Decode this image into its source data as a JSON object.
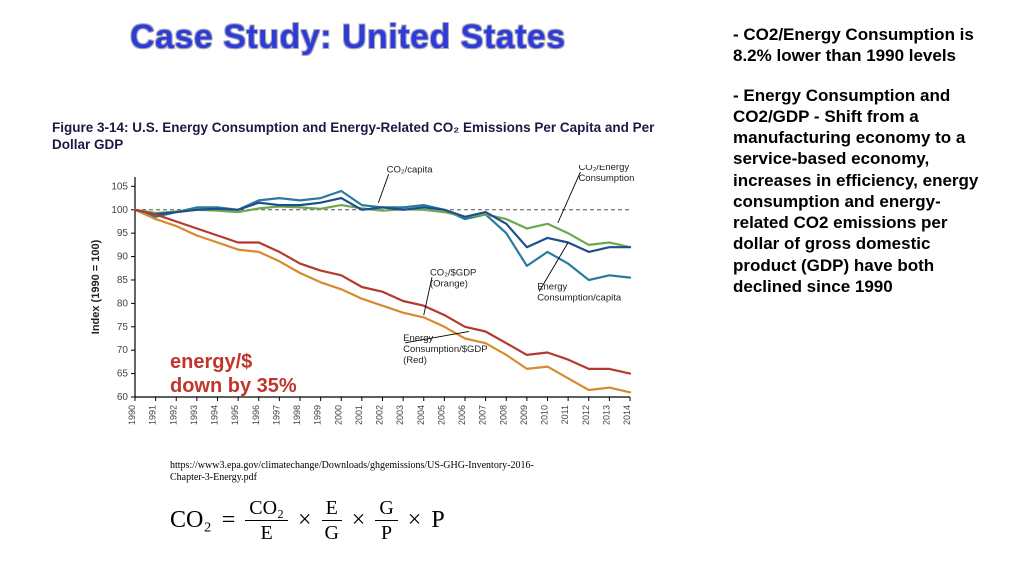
{
  "title": "Case Study: United States",
  "figure_caption": "Figure 3-14:  U.S. Energy Consumption and Energy-Related CO₂ Emissions Per Capita and Per Dollar GDP",
  "annotation_red_line1": "energy/$",
  "annotation_red_line2": "down by 35%",
  "source": "https://www3.epa.gov/climatechange/Downloads/ghgemissions/US-GHG-Inventory-2016-Chapter-3-Energy.pdf",
  "formula": {
    "lhs": "CO₂",
    "eq": "=",
    "t1n": "E",
    "t1d": "E",
    "times": "×",
    "t2n": "E",
    "t2d": "G",
    "t3n": "G",
    "t3d": "P",
    "tP": "P",
    "frac1_num": "CO₂",
    "frac1_den": "E",
    "frac2_num": "E",
    "frac2_den": "G",
    "frac3_num": "G",
    "frac3_den": "P"
  },
  "sidebar": {
    "p1": "- CO2/Energy Consumption is 8.2% lower than 1990 levels",
    "p2": "-  Energy Consumption and CO2/GDP - Shift from a manufacturing economy to a service-based economy, increases in efficiency, energy consumption and energy-related CO2 emissions per  dollar of gross domestic product (GDP) have both declined since 1990"
  },
  "chart": {
    "type": "line",
    "background_color": "#ffffff",
    "plot_border_color": "#000000",
    "grid": false,
    "reference_line": {
      "y": 100,
      "dash": "4,3",
      "color": "#555555",
      "width": 1
    },
    "x": {
      "label": null,
      "years": [
        1990,
        1991,
        1992,
        1993,
        1994,
        1995,
        1996,
        1997,
        1998,
        1999,
        2000,
        2001,
        2002,
        2003,
        2004,
        2005,
        2006,
        2007,
        2008,
        2009,
        2010,
        2011,
        2012,
        2013,
        2014
      ],
      "tick_rotation": -90,
      "tick_fontsize": 9,
      "tick_color": "#444444"
    },
    "y": {
      "label": "Index (1990 = 100)",
      "label_fontsize": 11,
      "label_color": "#222222",
      "lim": [
        60,
        107
      ],
      "ticks": [
        60,
        65,
        70,
        75,
        80,
        85,
        90,
        95,
        100,
        105
      ],
      "tick_fontsize": 10,
      "tick_color": "#444444"
    },
    "series": [
      {
        "name": "CO2/capita",
        "color": "#2a7a9e",
        "width": 2.2,
        "values": [
          100,
          98.5,
          99.5,
          100.5,
          100.5,
          100,
          102,
          102.5,
          102,
          102.5,
          104,
          101,
          100.5,
          100.5,
          101,
          100,
          98,
          99,
          95,
          88,
          91,
          88.5,
          85,
          86,
          85.5
        ]
      },
      {
        "name": "CO2/Energy Consumption",
        "color": "#6ea84f",
        "width": 2.2,
        "values": [
          100,
          99.3,
          99.6,
          100,
          99.8,
          99.5,
          100.3,
          100.7,
          100.5,
          100.2,
          101,
          100.3,
          99.8,
          100.1,
          100,
          99.5,
          98.5,
          99,
          98,
          96,
          97,
          95,
          92.5,
          93,
          92
        ]
      },
      {
        "name": "Energy Consumption/capita",
        "color": "#1f4e8c",
        "width": 2.2,
        "values": [
          100,
          99,
          99.5,
          100,
          100.2,
          100,
          101.5,
          101,
          101,
          101.5,
          102.5,
          100,
          100.5,
          100,
          100.5,
          100,
          98.5,
          99.5,
          97,
          92,
          94,
          93,
          91,
          92,
          92
        ]
      },
      {
        "name": "CO2/$GDP (Orange)",
        "color": "#d88a2e",
        "width": 2.2,
        "values": [
          100,
          98,
          96.5,
          94.5,
          93,
          91.5,
          91,
          89,
          86.5,
          84.5,
          83,
          81,
          79.5,
          78,
          77,
          75,
          72.5,
          71.5,
          69,
          66,
          66.5,
          64,
          61.5,
          62,
          61
        ]
      },
      {
        "name": "Energy Consumption/$GDP (Red)",
        "color": "#b23a2f",
        "width": 2.2,
        "values": [
          100,
          99,
          97.5,
          96,
          94.5,
          93,
          93,
          91,
          88.5,
          87,
          86,
          83.5,
          82.5,
          80.5,
          79.5,
          77.5,
          75,
          74,
          71.5,
          69,
          69.5,
          68,
          66,
          66,
          65
        ]
      }
    ],
    "callouts": [
      {
        "text": "CO₂/capita",
        "x_text": 12.2,
        "y_text": 108,
        "x_end": 11.8,
        "y_end": 101.5,
        "fontsize": 9.5
      },
      {
        "text_lines": [
          "CO₂/Energy",
          "Consumption"
        ],
        "x_text": 21.5,
        "y_text": 108.5,
        "x_end": 20.5,
        "y_end": 97.2,
        "fontsize": 9.5
      },
      {
        "text_lines": [
          "CO₂/$GDP",
          "(Orange)"
        ],
        "x_text": 14.3,
        "y_text": 86,
        "x_end": 14,
        "y_end": 77.5,
        "fontsize": 9.5
      },
      {
        "text_lines": [
          "Energy",
          "Consumption/capita"
        ],
        "x_text": 19.5,
        "y_text": 83,
        "x_end": 21,
        "y_end": 93,
        "fontsize": 9.5
      },
      {
        "text_lines": [
          "Energy",
          "Consumption/$GDP",
          "(Red)"
        ],
        "x_text": 13,
        "y_text": 72,
        "x_end": 16.2,
        "y_end": 74,
        "fontsize": 9.5
      }
    ]
  }
}
